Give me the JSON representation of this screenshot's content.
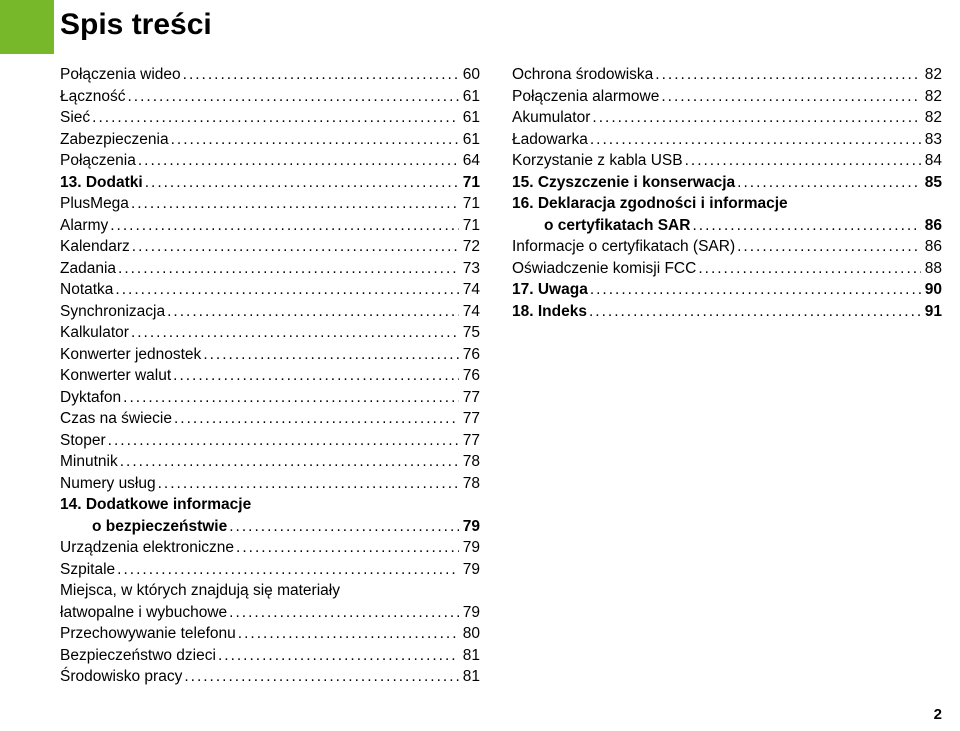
{
  "title": "Spis treści",
  "page_number": "2",
  "left": [
    {
      "label": "Połączenia wideo",
      "page": "60",
      "bold": false,
      "indent": false,
      "leader": true
    },
    {
      "label": "Łączność",
      "page": "61",
      "bold": false,
      "indent": false,
      "leader": true
    },
    {
      "label": "Sieć",
      "page": "61",
      "bold": false,
      "indent": false,
      "leader": true
    },
    {
      "label": "Zabezpieczenia",
      "page": "61",
      "bold": false,
      "indent": false,
      "leader": true
    },
    {
      "label": "Połączenia",
      "page": "64",
      "bold": false,
      "indent": false,
      "leader": true
    },
    {
      "label": "13. Dodatki",
      "page": "71",
      "bold": true,
      "indent": false,
      "leader": true
    },
    {
      "label": "PlusMega",
      "page": "71",
      "bold": false,
      "indent": false,
      "leader": true
    },
    {
      "label": "Alarmy",
      "page": "71",
      "bold": false,
      "indent": false,
      "leader": true
    },
    {
      "label": "Kalendarz",
      "page": "72",
      "bold": false,
      "indent": false,
      "leader": true
    },
    {
      "label": "Zadania",
      "page": "73",
      "bold": false,
      "indent": false,
      "leader": true
    },
    {
      "label": "Notatka",
      "page": "74",
      "bold": false,
      "indent": false,
      "leader": true
    },
    {
      "label": "Synchronizacja",
      "page": "74",
      "bold": false,
      "indent": false,
      "leader": true
    },
    {
      "label": "Kalkulator",
      "page": "75",
      "bold": false,
      "indent": false,
      "leader": true
    },
    {
      "label": "Konwerter jednostek",
      "page": "76",
      "bold": false,
      "indent": false,
      "leader": true
    },
    {
      "label": "Konwerter walut",
      "page": "76",
      "bold": false,
      "indent": false,
      "leader": true
    },
    {
      "label": "Dyktafon",
      "page": "77",
      "bold": false,
      "indent": false,
      "leader": true
    },
    {
      "label": "Czas na świecie",
      "page": "77",
      "bold": false,
      "indent": false,
      "leader": true
    },
    {
      "label": "Stoper",
      "page": "77",
      "bold": false,
      "indent": false,
      "leader": true
    },
    {
      "label": "Minutnik",
      "page": "78",
      "bold": false,
      "indent": false,
      "leader": true
    },
    {
      "label": "Numery usług",
      "page": "78",
      "bold": false,
      "indent": false,
      "leader": true
    },
    {
      "label": "14. Dodatkowe informacje",
      "page": "",
      "bold": true,
      "indent": false,
      "leader": false
    },
    {
      "label": "o bezpieczeństwie",
      "page": "79",
      "bold": true,
      "indent": true,
      "leader": true
    },
    {
      "label": "Urządzenia elektroniczne",
      "page": "79",
      "bold": false,
      "indent": false,
      "leader": true
    },
    {
      "label": "Szpitale",
      "page": "79",
      "bold": false,
      "indent": false,
      "leader": true
    },
    {
      "label": "Miejsca, w których znajdują się materiały",
      "page": "",
      "bold": false,
      "indent": false,
      "leader": false
    },
    {
      "label": "łatwopalne i wybuchowe",
      "page": "79",
      "bold": false,
      "indent": false,
      "leader": true
    },
    {
      "label": "Przechowywanie telefonu",
      "page": "80",
      "bold": false,
      "indent": false,
      "leader": true
    },
    {
      "label": "Bezpieczeństwo dzieci",
      "page": "81",
      "bold": false,
      "indent": false,
      "leader": true
    },
    {
      "label": "Środowisko pracy",
      "page": "81",
      "bold": false,
      "indent": false,
      "leader": true
    }
  ],
  "right": [
    {
      "label": "Ochrona środowiska",
      "page": "82",
      "bold": false,
      "indent": false,
      "leader": true
    },
    {
      "label": "Połączenia alarmowe",
      "page": "82",
      "bold": false,
      "indent": false,
      "leader": true
    },
    {
      "label": "Akumulator",
      "page": "82",
      "bold": false,
      "indent": false,
      "leader": true
    },
    {
      "label": "Ładowarka",
      "page": "83",
      "bold": false,
      "indent": false,
      "leader": true
    },
    {
      "label": "Korzystanie z kabla USB",
      "page": "84",
      "bold": false,
      "indent": false,
      "leader": true
    },
    {
      "label": "15. Czyszczenie i konserwacja",
      "page": "85",
      "bold": true,
      "indent": false,
      "leader": true
    },
    {
      "label": "16. Deklaracja zgodności i informacje",
      "page": "",
      "bold": true,
      "indent": false,
      "leader": false
    },
    {
      "label": "o certyfikatach SAR",
      "page": "86",
      "bold": true,
      "indent": true,
      "leader": true
    },
    {
      "label": "Informacje o certyfikatach (SAR)",
      "page": "86",
      "bold": false,
      "indent": false,
      "leader": true
    },
    {
      "label": "Oświadczenie komisji FCC",
      "page": "88",
      "bold": false,
      "indent": false,
      "leader": true
    },
    {
      "label": "17. Uwaga",
      "page": "90",
      "bold": true,
      "indent": false,
      "leader": true
    },
    {
      "label": "18. Indeks",
      "page": "91",
      "bold": true,
      "indent": false,
      "leader": true
    }
  ]
}
